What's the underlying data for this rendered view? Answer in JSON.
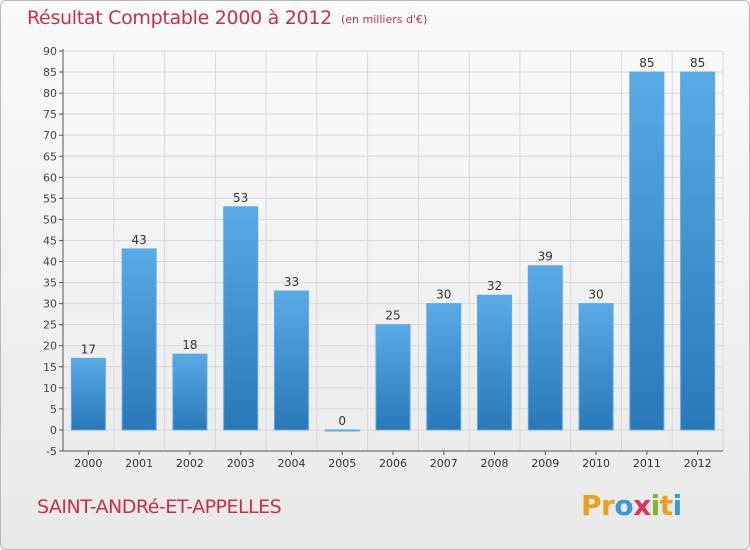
{
  "header": {
    "title": "Résultat Comptable 2000 à 2012",
    "unit": "(en milliers d'€)"
  },
  "footer": {
    "commune": "SAINT-ANDRé-ET-APPELLES",
    "brand": "Proxiti"
  },
  "colors": {
    "title": "#c8304a",
    "bar_top": "#5aaae6",
    "bar_bottom": "#2a78b8",
    "grid": "#d8d8d8",
    "brand_letters": [
      "#e8a020",
      "#e8a020",
      "#3a9ad8",
      "#e83060",
      "#7ab830",
      "#e8a020",
      "#3a9ad8"
    ]
  },
  "chart_data": {
    "type": "bar",
    "title": "Résultat Comptable 2000 à 2012",
    "subtitle": "(en milliers d'€)",
    "categories": [
      "2000",
      "2001",
      "2002",
      "2003",
      "2004",
      "2005",
      "2006",
      "2007",
      "2008",
      "2009",
      "2010",
      "2011",
      "2012"
    ],
    "values": [
      17,
      43,
      18,
      53,
      33,
      0,
      25,
      30,
      32,
      39,
      30,
      85,
      85
    ],
    "ylim": [
      -5,
      90
    ],
    "yticks": [
      -5,
      0,
      5,
      10,
      15,
      20,
      25,
      30,
      35,
      40,
      45,
      50,
      55,
      60,
      65,
      70,
      75,
      80,
      85,
      90
    ],
    "grid": true,
    "data_labels": true
  }
}
